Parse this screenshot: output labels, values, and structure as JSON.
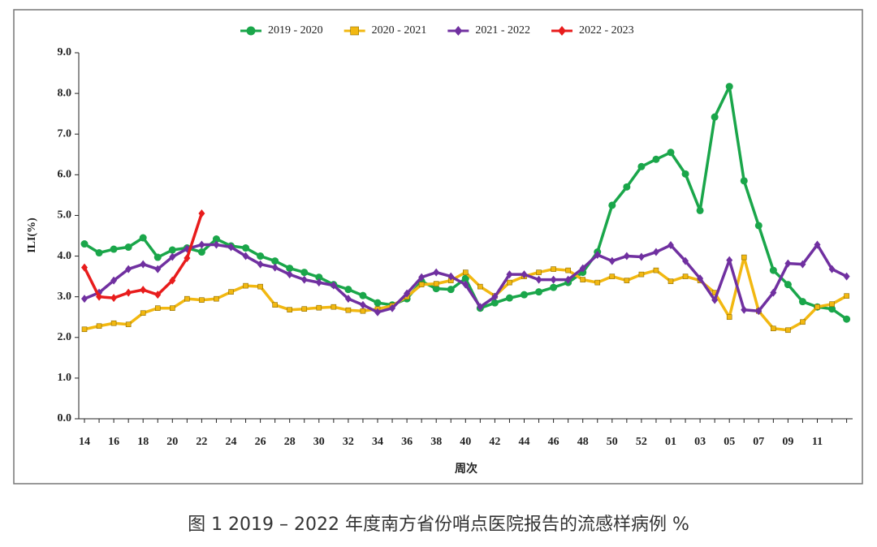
{
  "chart_data": {
    "type": "line",
    "categories": [
      "14",
      null,
      "16",
      null,
      "18",
      null,
      "20",
      null,
      "22",
      null,
      "24",
      null,
      "26",
      null,
      "28",
      null,
      "30",
      null,
      "32",
      null,
      "34",
      null,
      "36",
      null,
      "38",
      null,
      "40",
      null,
      "42",
      null,
      "44",
      null,
      "46",
      null,
      "48",
      null,
      "50",
      null,
      "52",
      null,
      "01",
      null,
      "03",
      null,
      "05",
      null,
      "07",
      null,
      "09",
      null,
      "11",
      null,
      null
    ],
    "series": [
      {
        "name": "2019 - 2020",
        "color": "#1aa64a",
        "marker": "circle",
        "values": [
          4.3,
          4.08,
          4.17,
          4.22,
          4.45,
          3.97,
          4.15,
          4.2,
          4.1,
          4.42,
          4.25,
          4.2,
          4.0,
          3.88,
          3.7,
          3.6,
          3.48,
          3.3,
          3.18,
          3.03,
          2.85,
          2.8,
          2.95,
          3.38,
          3.2,
          3.18,
          3.45,
          2.72,
          2.85,
          2.97,
          3.05,
          3.12,
          3.23,
          3.35,
          3.6,
          4.1,
          5.25,
          5.7,
          6.2,
          6.38,
          6.55,
          6.02,
          5.12,
          7.42,
          8.17,
          5.85,
          4.75,
          3.65,
          3.3,
          2.88,
          2.75,
          2.7,
          2.45
        ]
      },
      {
        "name": "2020 - 2021",
        "color": "#f2b811",
        "marker": "square",
        "values": [
          2.2,
          2.28,
          2.35,
          2.32,
          2.6,
          2.72,
          2.72,
          2.95,
          2.92,
          2.95,
          3.12,
          3.27,
          3.25,
          2.8,
          2.68,
          2.7,
          2.73,
          2.75,
          2.67,
          2.65,
          2.7,
          2.78,
          3.0,
          3.3,
          3.32,
          3.4,
          3.6,
          3.25,
          3.02,
          3.35,
          3.5,
          3.6,
          3.68,
          3.65,
          3.42,
          3.35,
          3.5,
          3.4,
          3.55,
          3.65,
          3.38,
          3.5,
          3.4,
          3.1,
          2.5,
          3.97,
          2.65,
          2.22,
          2.18,
          2.38,
          2.75,
          2.82,
          3.02
        ]
      },
      {
        "name": "2021 - 2022",
        "color": "#7030a0",
        "marker": "diamond",
        "values": [
          2.95,
          3.1,
          3.4,
          3.68,
          3.8,
          3.68,
          3.98,
          4.18,
          4.28,
          4.28,
          4.22,
          4.0,
          3.8,
          3.72,
          3.55,
          3.42,
          3.35,
          3.28,
          2.95,
          2.8,
          2.62,
          2.72,
          3.08,
          3.48,
          3.6,
          3.5,
          3.3,
          2.75,
          3.0,
          3.55,
          3.55,
          3.42,
          3.42,
          3.42,
          3.7,
          4.03,
          3.88,
          4.0,
          3.98,
          4.1,
          4.27,
          3.88,
          3.45,
          2.92,
          3.9,
          2.68,
          2.65,
          3.1,
          3.82,
          3.8,
          4.28,
          3.68,
          3.5
        ]
      },
      {
        "name": "2022 - 2023",
        "color": "#e81c1c",
        "marker": "diamond",
        "values": [
          3.72,
          3.0,
          2.97,
          3.1,
          3.17,
          3.05,
          3.4,
          3.95,
          5.05,
          null,
          null,
          null,
          null,
          null,
          null,
          null,
          null,
          null,
          null,
          null,
          null,
          null,
          null,
          null,
          null,
          null,
          null,
          null,
          null,
          null,
          null,
          null,
          null,
          null,
          null,
          null,
          null,
          null,
          null,
          null,
          null,
          null,
          null,
          null,
          null,
          null,
          null,
          null,
          null,
          null,
          null,
          null,
          null
        ]
      }
    ],
    "ylim": [
      0,
      9
    ],
    "yticks": [
      {
        "value": 0,
        "label": "0.0"
      },
      {
        "value": 1,
        "label": "1.0"
      },
      {
        "value": 2,
        "label": "2.0"
      },
      {
        "value": 3,
        "label": "3.0"
      },
      {
        "value": 4,
        "label": "4.0"
      },
      {
        "value": 5,
        "label": "5.0"
      },
      {
        "value": 6,
        "label": "6.0"
      },
      {
        "value": 7,
        "label": "7.0"
      },
      {
        "value": 8,
        "label": "8.0"
      },
      {
        "value": 9,
        "label": "9.0"
      }
    ],
    "ylabel": "ILI(%)",
    "xlabel": "周次",
    "legend": "top",
    "caption": "图 1 2019 – 2022 年度南方省份哨点医院报告的流感样病例 %"
  }
}
